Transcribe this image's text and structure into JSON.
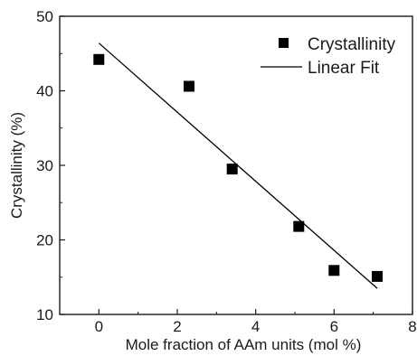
{
  "chart_data": {
    "type": "scatter",
    "xlabel": "Mole fraction of AAm units (mol %)",
    "ylabel": "Crystallinity (%)",
    "xlim": [
      -1,
      8
    ],
    "ylim": [
      10,
      50
    ],
    "x_ticks": [
      0,
      2,
      4,
      6,
      8
    ],
    "y_ticks": [
      10,
      20,
      30,
      40,
      50
    ],
    "grid": false,
    "legend_position": "top-right",
    "series": [
      {
        "name": "Crystallinity",
        "type": "scatter",
        "marker": "square",
        "color": "#000000",
        "x": [
          0,
          2.3,
          3.4,
          5.1,
          6.0,
          7.1
        ],
        "y": [
          44.2,
          40.6,
          29.5,
          21.8,
          15.9,
          15.1
        ]
      },
      {
        "name": "Linear Fit",
        "type": "line",
        "color": "#000000",
        "x": [
          0,
          7.1
        ],
        "y": [
          46.4,
          13.5
        ]
      }
    ]
  }
}
